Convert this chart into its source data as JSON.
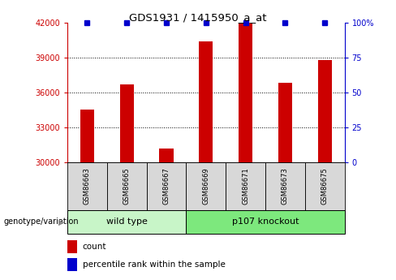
{
  "title": "GDS1931 / 1415950_a_at",
  "samples": [
    "GSM86663",
    "GSM86665",
    "GSM86667",
    "GSM86669",
    "GSM86671",
    "GSM86673",
    "GSM86675"
  ],
  "counts": [
    34500,
    36700,
    31200,
    40400,
    42000,
    36800,
    38800
  ],
  "percentiles": [
    100,
    100,
    100,
    100,
    100,
    100,
    100
  ],
  "ylim_left": [
    30000,
    42000
  ],
  "ylim_right": [
    0,
    100
  ],
  "yticks_left": [
    30000,
    33000,
    36000,
    39000,
    42000
  ],
  "yticks_right": [
    0,
    25,
    50,
    75,
    100
  ],
  "ytick_right_labels": [
    "0",
    "25",
    "50",
    "75",
    "100%"
  ],
  "groups": [
    {
      "label": "wild type",
      "indices": [
        0,
        1,
        2
      ],
      "color": "#c8f5c8"
    },
    {
      "label": "p107 knockout",
      "indices": [
        3,
        4,
        5,
        6
      ],
      "color": "#7de87d"
    }
  ],
  "bar_color": "#cc0000",
  "percentile_color": "#0000cc",
  "bar_width": 0.35,
  "background_color": "#ffffff",
  "group_label": "genotype/variation",
  "legend_count_label": "count",
  "legend_pct_label": "percentile rank within the sample",
  "tick_label_color_left": "#cc0000",
  "tick_label_color_right": "#0000cc",
  "axis_bg": "#d8d8d8",
  "fig_width": 4.88,
  "fig_height": 3.45,
  "dpi": 100
}
